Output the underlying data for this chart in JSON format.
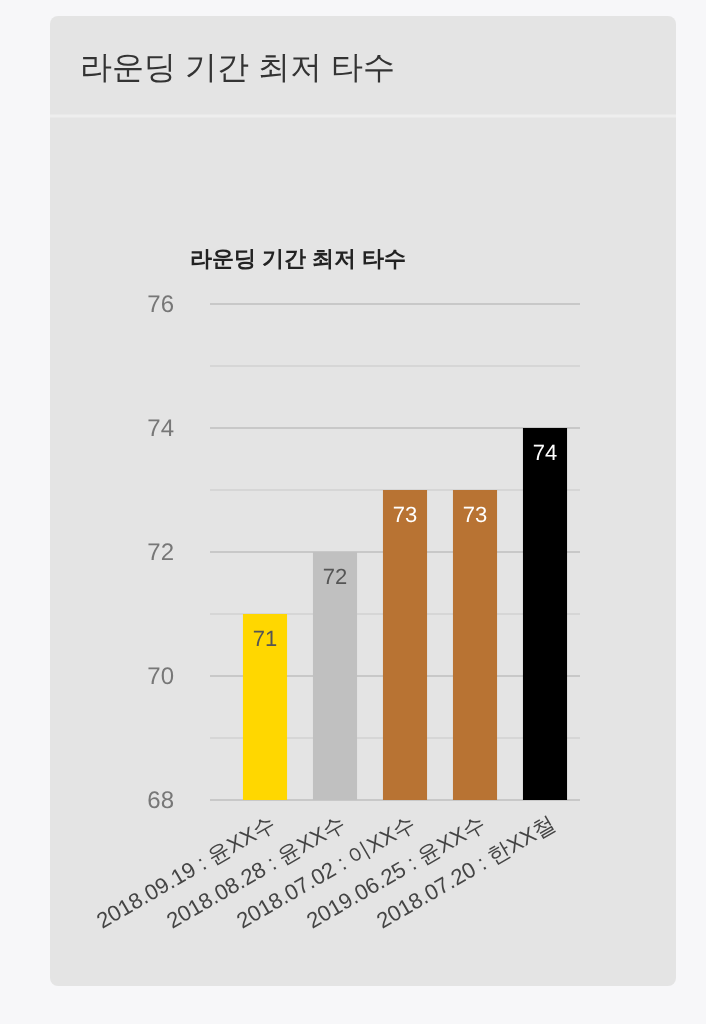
{
  "chart_data": {
    "type": "bar",
    "title": "라운딩 기간 최저 타수",
    "subtitle": "라운딩 기간 최저 타수",
    "categories": [
      "2018.09.19 : 윤XX수",
      "2018.08.28 : 윤XX수",
      "2018.07.02 : 이XX수",
      "2019.06.25 : 윤XX수",
      "2018.07.20 : 한XX철"
    ],
    "values": [
      71,
      72,
      73,
      73,
      74
    ],
    "colors": [
      "#ffd700",
      "#c0c0c0",
      "#b87333",
      "#b87333",
      "#000000"
    ],
    "ylim": [
      68,
      76
    ],
    "yticks": [
      68,
      {
        "value": 69,
        "label": null
      },
      70,
      {
        "value": 71,
        "label": null
      },
      72,
      {
        "value": 73,
        "label": null
      },
      74,
      {
        "value": 75,
        "label": null
      },
      76
    ],
    "grid": "y",
    "data_labels": true
  }
}
